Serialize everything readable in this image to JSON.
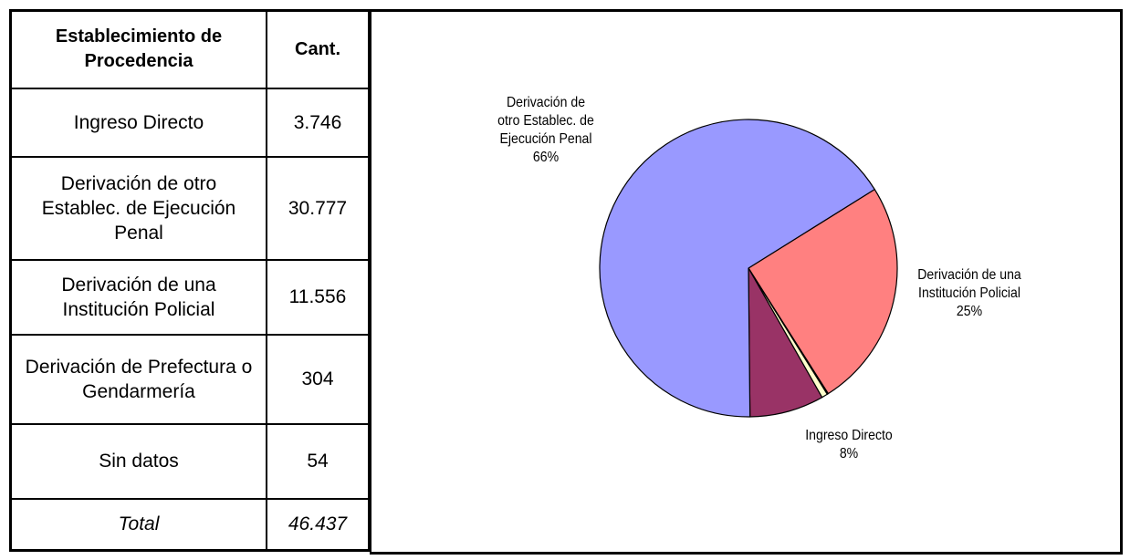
{
  "table": {
    "header": [
      "Establecimiento de Procedencia",
      "Cant."
    ],
    "rows": [
      [
        "Ingreso Directo",
        "3.746"
      ],
      [
        "Derivación de otro Establec. de Ejecución Penal",
        "30.777"
      ],
      [
        "Derivación de una Institución Policial",
        "11.556"
      ],
      [
        "Derivación de Prefectura o Gendarmería",
        "304"
      ],
      [
        "Sin datos",
        "54"
      ]
    ],
    "total": [
      "Total",
      "46.437"
    ]
  },
  "chart_data": {
    "type": "pie",
    "categories": [
      "Derivación de una Institución Policial",
      null,
      null,
      "Ingreso Directo",
      "Derivación de otro Establec. de Ejecución Penal"
    ],
    "values": [
      24.89,
      0.12,
      0.65,
      8.07,
      66.28
    ],
    "value_labels": [
      "25%",
      null,
      null,
      "8%",
      "66%"
    ],
    "colors": [
      "#ff8080",
      "#ccffff",
      "#ffffcc",
      "#993366",
      "#9999ff"
    ]
  }
}
